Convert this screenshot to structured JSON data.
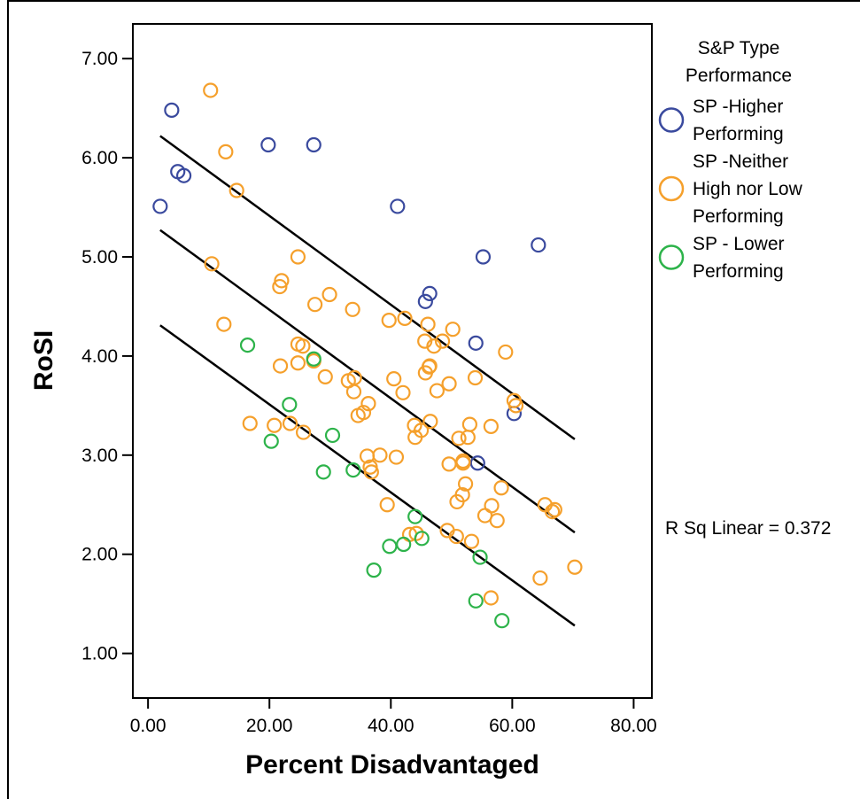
{
  "chart_data": {
    "type": "scatter",
    "title": "",
    "xlabel": "Percent Disadvantaged",
    "ylabel": "RoSI",
    "xlim": [
      -2.5,
      83
    ],
    "ylim": [
      0.55,
      7.35
    ],
    "xticks": [
      0,
      20,
      40,
      60,
      80
    ],
    "yticks": [
      1,
      2,
      3,
      4,
      5,
      6,
      7
    ],
    "xtick_labels": [
      "0.00",
      "20.00",
      "40.00",
      "60.00",
      "80.00"
    ],
    "ytick_labels": [
      "1.00",
      "2.00",
      "3.00",
      "4.00",
      "5.00",
      "6.00",
      "7.00"
    ],
    "grid": false,
    "legend_position": "right",
    "legend": {
      "title_lines": [
        "S&P Type",
        "Performance"
      ],
      "entries": [
        {
          "lines": [
            "SP -Higher",
            "Performing"
          ],
          "color": "#3A4A9E"
        },
        {
          "lines": [
            "SP -Neither",
            "High nor Low",
            "Performing"
          ],
          "color": "#F5A02C"
        },
        {
          "lines": [
            "SP - Lower",
            "Performing"
          ],
          "color": "#2DB34A"
        }
      ]
    },
    "annotation": "R Sq Linear = 0.372",
    "series": [
      {
        "name": "SP -Higher Performing",
        "color": "#3A4A9E",
        "x": [
          3.9,
          4.9,
          5.9,
          2.0,
          19.8,
          27.3,
          41.1,
          55.2,
          64.3,
          46.4,
          45.7,
          54.0,
          60.3,
          54.3
        ],
        "y": [
          6.48,
          5.86,
          5.82,
          5.51,
          6.13,
          6.13,
          5.51,
          5.0,
          5.12,
          4.63,
          4.55,
          4.13,
          3.42,
          2.92
        ]
      },
      {
        "name": "SP -Neither High nor Low Performing",
        "color": "#F5A02C",
        "x": [
          10.3,
          12.8,
          14.6,
          10.5,
          24.7,
          22.0,
          21.7,
          27.5,
          29.9,
          33.7,
          39.7,
          42.3,
          46.1,
          50.2,
          48.5,
          47.1,
          45.6,
          46.4,
          58.9,
          60.3,
          60.6,
          12.5,
          25.5,
          24.7,
          27.3,
          24.7,
          21.8,
          33.0,
          34.0,
          29.2,
          33.9,
          40.5,
          42.0,
          45.7,
          46.3,
          49.6,
          53.9,
          47.6,
          56.5,
          36.3,
          35.5,
          34.6,
          16.8,
          20.8,
          23.4,
          25.6,
          43.9,
          45.0,
          44.0,
          46.5,
          51.2,
          53.0,
          52.7,
          51.9,
          36.1,
          38.2,
          40.9,
          36.8,
          36.6,
          49.6,
          51.9,
          52.3,
          58.2,
          51.8,
          50.9,
          56.6,
          55.5,
          57.5,
          39.4,
          65.4,
          67.0,
          66.6,
          43.1,
          44.2,
          49.3,
          50.8,
          53.3,
          64.6,
          70.3,
          56.5
        ],
        "y": [
          6.68,
          6.06,
          5.67,
          4.93,
          5.0,
          4.76,
          4.7,
          4.52,
          4.62,
          4.47,
          4.36,
          4.38,
          4.32,
          4.27,
          4.15,
          4.1,
          4.15,
          3.9,
          4.04,
          3.55,
          3.5,
          4.32,
          4.1,
          4.12,
          3.95,
          3.93,
          3.9,
          3.75,
          3.78,
          3.79,
          3.64,
          3.77,
          3.63,
          3.83,
          3.89,
          3.72,
          3.78,
          3.65,
          3.29,
          3.52,
          3.43,
          3.4,
          3.32,
          3.3,
          3.32,
          3.23,
          3.3,
          3.25,
          3.18,
          3.34,
          3.17,
          3.31,
          3.18,
          2.92,
          2.99,
          3.0,
          2.98,
          2.83,
          2.88,
          2.91,
          2.94,
          2.71,
          2.67,
          2.6,
          2.53,
          2.49,
          2.39,
          2.34,
          2.5,
          2.5,
          2.45,
          2.43,
          2.2,
          2.21,
          2.24,
          2.18,
          2.13,
          1.76,
          1.87,
          1.56
        ]
      },
      {
        "name": "SP - Lower Performing",
        "color": "#2DB34A",
        "x": [
          16.4,
          27.3,
          23.3,
          30.4,
          20.3,
          28.9,
          33.8,
          44.0,
          39.8,
          42.1,
          45.1,
          37.2,
          54.7,
          54.0,
          58.3
        ],
        "y": [
          4.11,
          3.97,
          3.51,
          3.2,
          3.14,
          2.83,
          2.85,
          2.38,
          2.08,
          2.1,
          2.16,
          1.84,
          1.97,
          1.53,
          1.33
        ]
      }
    ],
    "fit_lines": [
      {
        "x": [
          2,
          70.3
        ],
        "y": [
          6.22,
          3.16
        ]
      },
      {
        "x": [
          2,
          70.3
        ],
        "y": [
          5.27,
          2.22
        ]
      },
      {
        "x": [
          2,
          70.3
        ],
        "y": [
          4.31,
          1.28
        ]
      }
    ]
  }
}
